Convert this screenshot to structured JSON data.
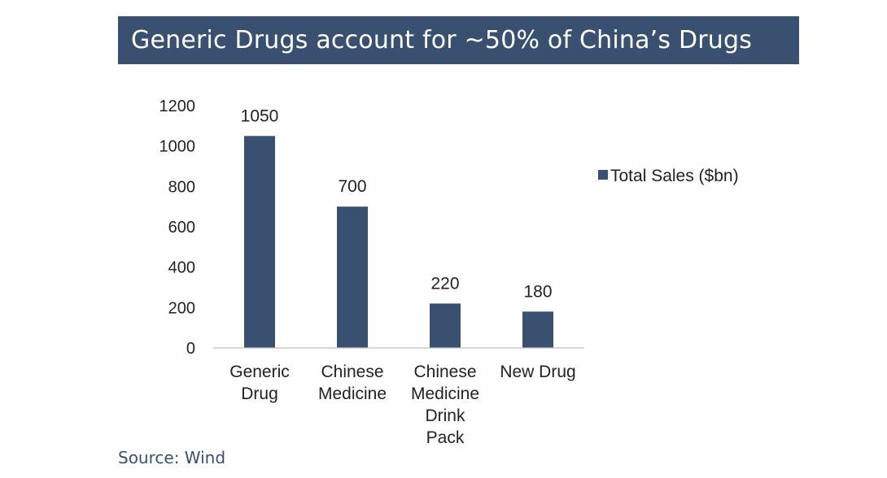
{
  "title": "Generic Drugs account for ~50% of China’s Drugs",
  "source": "Source: Wind",
  "colors": {
    "bar": "#3a5070",
    "title_bg": "#3a5070",
    "axis": "#bfbfbf"
  },
  "chart_data": {
    "type": "bar",
    "categories": [
      [
        "Generic",
        "Drug"
      ],
      [
        "Chinese",
        "Medicine"
      ],
      [
        "Chinese",
        "Medicine",
        "Drink",
        "Pack"
      ],
      [
        "New Drug"
      ]
    ],
    "series": [
      {
        "name": "Total Sales ($bn)",
        "values": [
          1050,
          700,
          220,
          180
        ]
      }
    ],
    "data_labels": [
      "1050",
      "700",
      "220",
      "180"
    ],
    "ylim": [
      0,
      1200
    ],
    "yticks": [
      "0",
      "200",
      "400",
      "600",
      "800",
      "1000",
      "1200"
    ],
    "grid": false,
    "legend_position": "right"
  }
}
